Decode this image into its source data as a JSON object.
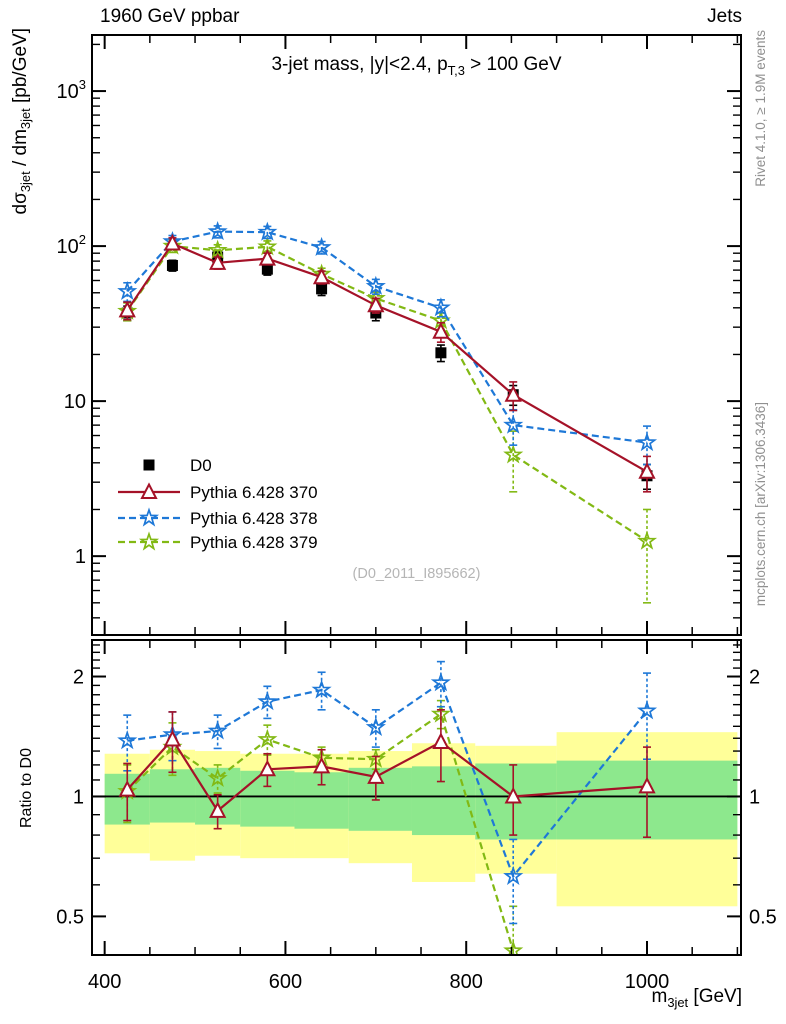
{
  "header": {
    "left": "1960 GeV ppbar",
    "right": "Jets"
  },
  "side_notes": {
    "top": "Rivet 4.1.0, ≥ 1.9M events",
    "bottom": "mcplots.cern.ch [arXiv:1306.3436]"
  },
  "watermark": "(D0_2011_I895662)",
  "chart_data": {
    "type": "line",
    "title_parts": [
      [
        "t",
        "3-jet mass, |y|<2.4, p"
      ],
      [
        "s",
        "T,3"
      ],
      [
        "t",
        " > 100 GeV"
      ]
    ],
    "xlabel_parts": [
      [
        "t",
        "m"
      ],
      [
        "s",
        "3jet"
      ],
      [
        "t",
        " [GeV]"
      ]
    ],
    "ylabel_parts": [
      [
        "t",
        "dσ"
      ],
      [
        "s",
        "3jet"
      ],
      [
        "t",
        " / dm"
      ],
      [
        "s",
        "3jet"
      ],
      [
        "t",
        " [pb/GeV]"
      ]
    ],
    "ratio_ylabel": "Ratio to D0",
    "legend_position": "left-middle",
    "grid": false,
    "xlim": [
      386,
      1104
    ],
    "main_ylim": [
      0.31,
      2300
    ],
    "ratio_ylim": [
      0.4,
      2.47
    ],
    "x_axis_scale": "linear",
    "y_axis_scale": "log",
    "x_tick_labels": [
      {
        "v": 400,
        "label": "400"
      },
      {
        "v": 600,
        "label": "600"
      },
      {
        "v": 800,
        "label": "800"
      },
      {
        "v": 1000,
        "label": "1000"
      }
    ],
    "x_minor_step": 50,
    "main_y_ticks": [
      {
        "v": 1000,
        "label": "10",
        "exp": "3"
      },
      {
        "v": 100,
        "label": "10",
        "exp": "2"
      },
      {
        "v": 10,
        "label": "10",
        "exp": ""
      },
      {
        "v": 1,
        "label": "1",
        "exp": ""
      }
    ],
    "ratio_y_ticks": [
      {
        "v": 2,
        "label": "2"
      },
      {
        "v": 1,
        "label": "1"
      },
      {
        "v": 0.5,
        "label": "0.5"
      }
    ],
    "x": [
      425,
      475,
      525,
      580,
      640,
      700,
      772,
      852,
      1000
    ],
    "series": [
      {
        "name": "D0",
        "color": "#000000",
        "marker": "square",
        "line": "none",
        "values": [
          37,
          75,
          85,
          71,
          53,
          37,
          20.5,
          11,
          3.3
        ],
        "err": [
          4,
          6,
          7,
          6,
          5,
          4,
          2.5,
          1.6,
          0.6
        ],
        "ratio_const": 1.0
      },
      {
        "name": "Pythia 6.428 370",
        "color": "#a51228",
        "marker": "triangle-open",
        "line": "solid",
        "values": [
          38.5,
          104,
          78,
          83,
          63,
          41.5,
          28,
          11,
          3.5
        ],
        "err": [
          5,
          9,
          7,
          7,
          6,
          4.5,
          4,
          2.3,
          0.9
        ],
        "ratio": [
          1.04,
          1.39,
          0.92,
          1.17,
          1.19,
          1.12,
          1.37,
          1.0,
          1.06
        ],
        "ratio_err": [
          0.17,
          0.24,
          0.09,
          0.11,
          0.12,
          0.14,
          0.28,
          0.2,
          0.27
        ]
      },
      {
        "name": "Pythia 6.428 378",
        "color": "#1e78d7",
        "marker": "star",
        "line": "dashed",
        "values": [
          51,
          107,
          124,
          123,
          98,
          55,
          40,
          7.0,
          5.4
        ],
        "err": [
          7,
          10,
          11,
          11,
          9,
          6,
          5,
          1.8,
          1.5
        ],
        "ratio": [
          1.38,
          1.43,
          1.46,
          1.73,
          1.85,
          1.49,
          1.93,
          0.63,
          1.64
        ],
        "ratio_err": [
          0.22,
          0.2,
          0.14,
          0.16,
          0.2,
          0.16,
          0.25,
          0.15,
          0.4
        ]
      },
      {
        "name": "Pythia 6.428 379",
        "color": "#82b914",
        "marker": "star",
        "line": "dashed",
        "values": [
          38,
          100,
          94,
          99,
          66,
          46,
          33,
          4.5,
          1.25
        ],
        "err": [
          5,
          9,
          8,
          9,
          6,
          4.5,
          4,
          1.9,
          0.75
        ],
        "ratio": [
          1.03,
          1.33,
          1.11,
          1.39,
          1.25,
          1.24,
          1.61,
          0.41,
          null
        ],
        "ratio_err": [
          0.17,
          0.2,
          0.09,
          0.12,
          0.08,
          0.07,
          0.13,
          0.12,
          null
        ]
      }
    ],
    "ratio_bands": {
      "edges": [
        400,
        450,
        500,
        550,
        610,
        670,
        740,
        810,
        900,
        1100
      ],
      "outer_color": "#ffff99",
      "inner_color": "#8de88d",
      "outer": [
        [
          0.72,
          1.28
        ],
        [
          0.69,
          1.31
        ],
        [
          0.71,
          1.3
        ],
        [
          0.7,
          1.28
        ],
        [
          0.7,
          1.28
        ],
        [
          0.68,
          1.3
        ],
        [
          0.61,
          1.36
        ],
        [
          0.64,
          1.34
        ],
        [
          0.53,
          1.45
        ]
      ],
      "inner": [
        [
          0.85,
          1.14
        ],
        [
          0.86,
          1.17
        ],
        [
          0.85,
          1.18
        ],
        [
          0.84,
          1.16
        ],
        [
          0.83,
          1.15
        ],
        [
          0.82,
          1.18
        ],
        [
          0.8,
          1.19
        ],
        [
          0.78,
          1.21
        ],
        [
          0.78,
          1.23
        ]
      ]
    }
  }
}
